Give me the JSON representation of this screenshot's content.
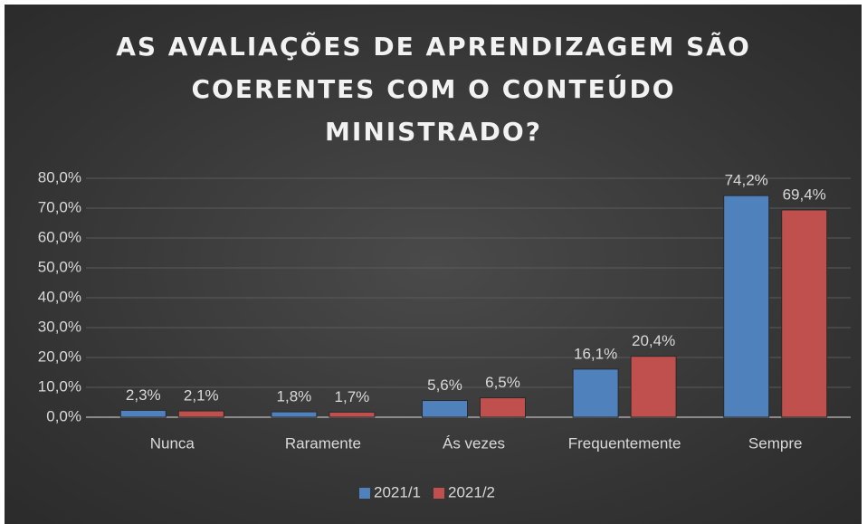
{
  "chart_data": {
    "type": "bar",
    "title": "AS AVALIAÇÕES DE APRENDIZAGEM SÃO COERENTES COM O CONTEÚDO MINISTRADO?",
    "categories": [
      "Nunca",
      "Raramente",
      "Ás vezes",
      "Frequentemente",
      "Sempre"
    ],
    "series": [
      {
        "name": "2021/1",
        "color": "#4f81bd",
        "values": [
          2.3,
          1.8,
          5.6,
          16.1,
          74.2
        ],
        "value_labels": [
          "2,3%",
          "1,8%",
          "5,6%",
          "16,1%",
          "74,2%"
        ]
      },
      {
        "name": "2021/2",
        "color": "#c0504d",
        "values": [
          2.1,
          1.7,
          6.5,
          20.4,
          69.4
        ],
        "value_labels": [
          "2,1%",
          "1,7%",
          "6,5%",
          "20,4%",
          "69,4%"
        ]
      }
    ],
    "ylim": [
      0,
      80
    ],
    "yticks": [
      {
        "value": 0,
        "label": "0,0%"
      },
      {
        "value": 10,
        "label": "10,0%"
      },
      {
        "value": 20,
        "label": "20,0%"
      },
      {
        "value": 30,
        "label": "30,0%"
      },
      {
        "value": 40,
        "label": "40,0%"
      },
      {
        "value": 50,
        "label": "50,0%"
      },
      {
        "value": 60,
        "label": "60,0%"
      },
      {
        "value": 70,
        "label": "70,0%"
      },
      {
        "value": 80,
        "label": "80,0%"
      }
    ],
    "grid": true,
    "legend": "bottom"
  }
}
